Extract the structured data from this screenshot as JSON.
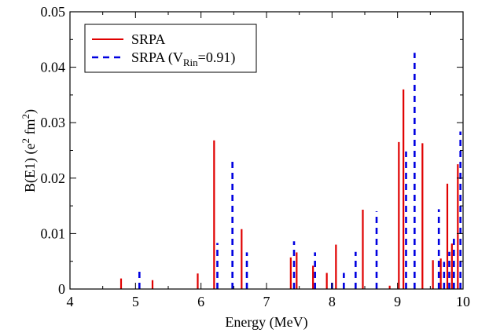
{
  "chart_data": {
    "type": "bar",
    "xlabel": "Energy (MeV)",
    "ylabel": {
      "main": "B(E1) (e",
      "sup1": "2",
      "mid": " fm",
      "sup2": "2",
      "end": ")"
    },
    "xlim": [
      4,
      10
    ],
    "ylim": [
      0,
      0.05
    ],
    "x_ticks": [
      4,
      5,
      6,
      7,
      8,
      9,
      10
    ],
    "y_ticks": [
      0,
      0.01,
      0.02,
      0.03,
      0.04,
      0.05
    ],
    "x_tick_labels": [
      "4",
      "5",
      "6",
      "7",
      "8",
      "9",
      "10"
    ],
    "y_tick_labels": [
      "0",
      "0.01",
      "0.02",
      "0.03",
      "0.04",
      "0.05"
    ],
    "grid": false,
    "legend_position": "top-left",
    "series": [
      {
        "name": "SRPA",
        "color": "#e00000",
        "dash": "solid",
        "points": [
          [
            4.78,
            0.0019
          ],
          [
            5.26,
            0.0016
          ],
          [
            5.95,
            0.0028
          ],
          [
            6.2,
            0.0268
          ],
          [
            6.62,
            0.0108
          ],
          [
            7.37,
            0.0057
          ],
          [
            7.46,
            0.0066
          ],
          [
            7.71,
            0.0042
          ],
          [
            7.92,
            0.0029
          ],
          [
            8.06,
            0.008
          ],
          [
            8.47,
            0.0143
          ],
          [
            8.88,
            0.0006
          ],
          [
            9.02,
            0.0265
          ],
          [
            9.09,
            0.036
          ],
          [
            9.38,
            0.0263
          ],
          [
            9.54,
            0.0052
          ],
          [
            9.66,
            0.0055
          ],
          [
            9.76,
            0.019
          ],
          [
            9.83,
            0.0082
          ],
          [
            9.92,
            0.0225
          ]
        ]
      },
      {
        "name": {
          "pre": "SRPA (V",
          "sub": "Rin",
          "post": "=0.91)"
        },
        "color": "#0000e0",
        "dash": "dashed",
        "points": [
          [
            5.06,
            0.0039
          ],
          [
            6.25,
            0.0083
          ],
          [
            6.48,
            0.0238
          ],
          [
            6.7,
            0.0066
          ],
          [
            7.42,
            0.0086
          ],
          [
            7.74,
            0.0066
          ],
          [
            8.0,
            0.0015
          ],
          [
            8.18,
            0.0029
          ],
          [
            8.36,
            0.0067
          ],
          [
            8.68,
            0.014
          ],
          [
            9.13,
            0.0248
          ],
          [
            9.26,
            0.0426
          ],
          [
            9.63,
            0.0144
          ],
          [
            9.71,
            0.0049
          ],
          [
            9.79,
            0.0067
          ],
          [
            9.86,
            0.0094
          ],
          [
            9.96,
            0.0284
          ]
        ]
      }
    ]
  }
}
